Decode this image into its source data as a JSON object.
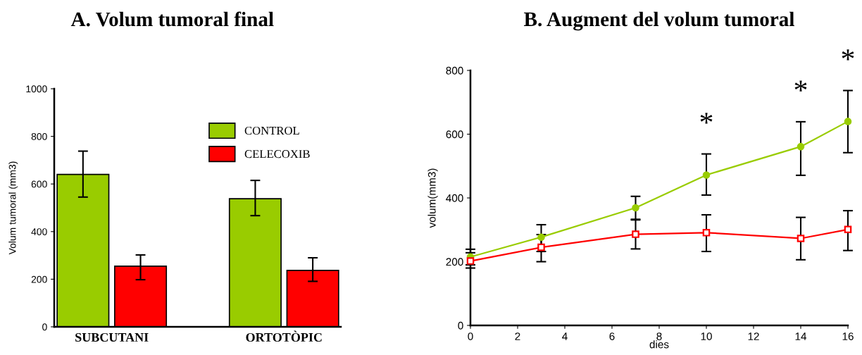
{
  "chart_data": [
    {
      "type": "bar",
      "title": "A. Volum tumoral final",
      "ylabel": "Volum tumoral (mm3)",
      "categories": [
        "SUBCUTANI",
        "ORTOTÒPIC"
      ],
      "series": [
        {
          "name": "CONTROL",
          "color": "#99cc00",
          "values": [
            640,
            538
          ],
          "errors": [
            [
              545,
              738
            ],
            [
              467,
              615
            ]
          ]
        },
        {
          "name": "CELECOXIB",
          "color": "#ff0000",
          "values": [
            255,
            237
          ],
          "errors": [
            [
              198,
              302
            ],
            [
              191,
              290
            ]
          ]
        }
      ],
      "ylim": [
        0,
        1000
      ],
      "yticks": [
        0,
        200,
        400,
        600,
        800,
        1000
      ],
      "grid": false,
      "legend": "top right"
    },
    {
      "type": "line",
      "title": "B. Augment del volum tumoral",
      "xlabel": "dies",
      "ylabel": "volum(mm3)",
      "x": [
        0,
        3,
        7,
        10,
        14,
        16
      ],
      "series": [
        {
          "color": "#99cc00",
          "marker": "circle",
          "values": [
            215,
            277,
            369,
            472,
            561,
            640
          ],
          "errors": [
            [
              190,
              239
            ],
            [
              232,
              316
            ],
            [
              331,
              405
            ],
            [
              409,
              538
            ],
            [
              471,
              639
            ],
            [
              542,
              737
            ]
          ]
        },
        {
          "color": "#ff0000",
          "marker": "square",
          "values": [
            202,
            245,
            286,
            291,
            273,
            301
          ],
          "errors": [
            [
              180,
              228
            ],
            [
              200,
              285
            ],
            [
              240,
              333
            ],
            [
              232,
              347
            ],
            [
              206,
              339
            ],
            [
              235,
              360
            ]
          ]
        }
      ],
      "xlim": [
        0,
        16
      ],
      "xticks": [
        0,
        2,
        4,
        6,
        8,
        10,
        12,
        14,
        16
      ],
      "ylim": [
        0,
        800
      ],
      "yticks": [
        0,
        200,
        400,
        600,
        800
      ],
      "grid": false,
      "legend": false,
      "annotations": [
        {
          "text": "*",
          "x": 10,
          "y": 472
        },
        {
          "text": "*",
          "x": 14,
          "y": 561
        },
        {
          "text": "*",
          "x": 16,
          "y": 640
        }
      ]
    }
  ]
}
